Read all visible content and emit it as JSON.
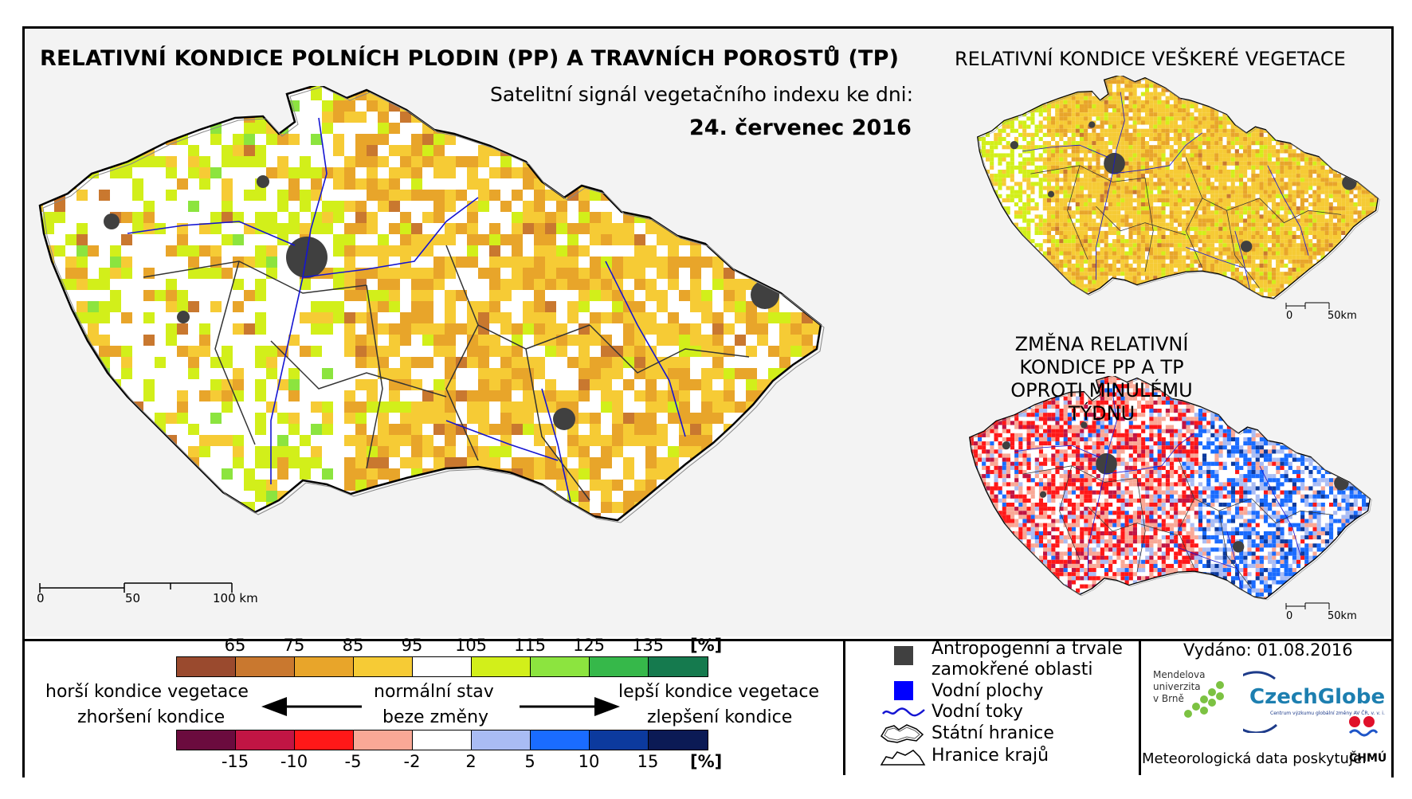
{
  "header": {
    "title": "RELATIVNÍ KONDICE POLNÍCH PLODIN (PP) A TRAVNÍCH POROSTŮ (TP)",
    "subtitle": "Satelitní signál vegetačního indexu ke dni:",
    "date": "24. červenec 2016"
  },
  "inset_vegetation": {
    "title": "RELATIVNÍ KONDICE VEŠKERÉ VEGETACE",
    "scale": [
      "0",
      "50km"
    ]
  },
  "inset_change": {
    "title_line1": "ZMĚNA RELATIVNÍ KONDICE PP A TP",
    "title_line2": "OPROTI MINULÉMU TÝDNU",
    "scale": [
      "0",
      "50km"
    ]
  },
  "main_scale": [
    "0",
    "50",
    "100 km"
  ],
  "legend": {
    "condition_ticks": [
      "65",
      "75",
      "85",
      "95",
      "105",
      "115",
      "125",
      "135"
    ],
    "condition_unit": "[%]",
    "condition_colors": [
      "#9a4a2e",
      "#c9782f",
      "#e8a52a",
      "#f6cb35",
      "#ffffff",
      "#d2ef1a",
      "#8ce43f",
      "#36b84a",
      "#157a4e"
    ],
    "change_ticks": [
      "-15",
      "-10",
      "-5",
      "-2",
      "2",
      "5",
      "10",
      "15"
    ],
    "change_unit": "[%]",
    "change_colors": [
      "#6b0b3e",
      "#c11544",
      "#ff1818",
      "#f9a896",
      "#ffffff",
      "#a9bcf4",
      "#1a6cff",
      "#0c3a9e",
      "#0b1a55"
    ],
    "worse_line1": "horší kondice vegetace",
    "worse_line2": "zhoršení kondice",
    "normal_line1": "normální stav",
    "normal_line2": "beze změny",
    "better_line1": "lepší kondice vegetace",
    "better_line2": "zlepšení kondice"
  },
  "map_legend": {
    "anthropogenic_line1": "Antropogenní a trvale",
    "anthropogenic_line2": "zamokřené oblasti",
    "water_bodies": "Vodní plochy",
    "rivers": "Vodní toky",
    "state_border": "Státní hranice",
    "region_border": "Hranice krajů"
  },
  "credits": {
    "issued": "Vydáno: 01.08.2016",
    "mendel_line1": "Mendelova",
    "mendel_line2": "univerzita",
    "mendel_line3": "v Brně",
    "czechglobe": "CzechGlobe",
    "czechglobe_sub": "Centrum výzkumu globální změny AV ČR, v. v. i.",
    "meteo": "Meteorologická data poskytuje:",
    "chmu": "ČHMÚ"
  },
  "colors": {
    "anthropogenic": "#404040",
    "water": "#0000ff",
    "river": "#1414d2"
  }
}
